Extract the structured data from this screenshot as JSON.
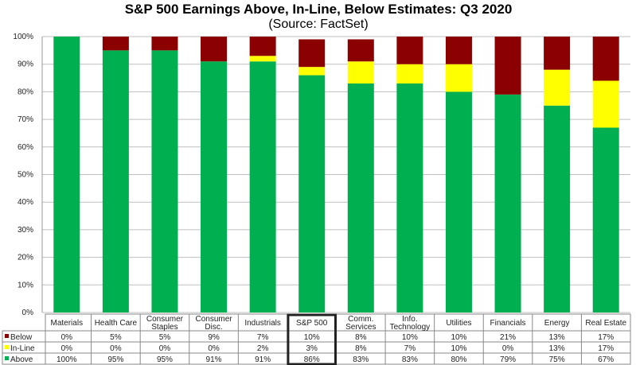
{
  "chart_data": {
    "type": "bar",
    "stacked": true,
    "title": "S&P 500 Earnings Above, In-Line, Below Estimates: Q3 2020",
    "subtitle": "(Source: FactSet)",
    "categories": [
      "Materials",
      "Health Care",
      "Consumer Staples",
      "Consumer Disc.",
      "Industrials",
      "S&P 500",
      "Comm. Services",
      "Info. Technology",
      "Utilities",
      "Financials",
      "Energy",
      "Real Estate"
    ],
    "category_lines": [
      [
        "Materials"
      ],
      [
        "Health Care"
      ],
      [
        "Consumer",
        "Staples"
      ],
      [
        "Consumer",
        "Disc."
      ],
      [
        "Industrials"
      ],
      [
        "S&P 500"
      ],
      [
        "Comm.",
        "Services"
      ],
      [
        "Info.",
        "Technology"
      ],
      [
        "Utilities"
      ],
      [
        "Financials"
      ],
      [
        "Energy"
      ],
      [
        "Real Estate"
      ]
    ],
    "highlighted_category": "S&P 500",
    "series": [
      {
        "name": "Below",
        "color": "#8B0000",
        "values": [
          0,
          5,
          5,
          9,
          7,
          10,
          8,
          10,
          10,
          21,
          13,
          17
        ]
      },
      {
        "name": "In-Line",
        "color": "#FFFF00",
        "values": [
          0,
          0,
          0,
          0,
          2,
          3,
          8,
          7,
          10,
          0,
          13,
          17
        ]
      },
      {
        "name": "Above",
        "color": "#00B050",
        "values": [
          100,
          95,
          95,
          91,
          91,
          86,
          83,
          83,
          80,
          79,
          75,
          67
        ]
      }
    ],
    "ylim": [
      0,
      100
    ],
    "yticks": [
      "0%",
      "10%",
      "20%",
      "30%",
      "40%",
      "50%",
      "60%",
      "70%",
      "80%",
      "90%",
      "100%"
    ],
    "grid": true,
    "legend": "data-table"
  }
}
